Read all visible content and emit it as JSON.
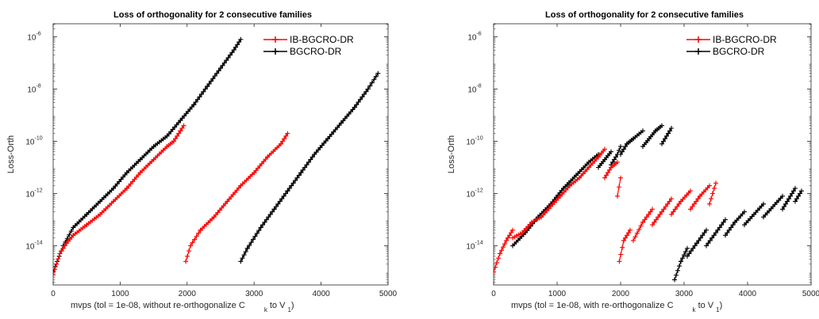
{
  "chart_data": [
    {
      "type": "scatter",
      "title": "Loss of orthogonality for 2 consecutive families",
      "xlabel": "mvps (tol = 1e-08, without re-orthogonalize C",
      "xlabel_sub_k": "k",
      "xlabel_to": " to V",
      "xlabel_sub_1": "1",
      "xlabel_close": ")",
      "ylabel": "Loss-Orth",
      "xlim": [
        0,
        5000
      ],
      "ylim_log10": [
        -15.5,
        -5.5
      ],
      "y_scale": "log",
      "x_ticks": [
        "0",
        "1000",
        "2000",
        "3000",
        "4000",
        "5000"
      ],
      "y_ticks": [
        {
          "base": "10",
          "exp": "-14"
        },
        {
          "base": "10",
          "exp": "-12"
        },
        {
          "base": "10",
          "exp": "-10"
        },
        {
          "base": "10",
          "exp": "-8"
        },
        {
          "base": "10",
          "exp": "-6"
        }
      ],
      "legend_placement": "top-right",
      "series": [
        {
          "name": "IB-BGCRO-DR",
          "color": "#ff0000",
          "segments": [
            {
              "x": [
                0,
                100,
                200,
                300,
                500,
                700,
                900,
                1100,
                1300,
                1500,
                1700,
                1800,
                1900,
                1950
              ],
              "y_log10": [
                -15.1,
                -14.3,
                -13.9,
                -13.6,
                -13.2,
                -12.8,
                -12.3,
                -11.8,
                -11.2,
                -10.7,
                -10.2,
                -10.0,
                -9.6,
                -9.4
              ]
            },
            {
              "x": [
                1980,
                2050,
                2200,
                2400,
                2600,
                2800,
                3000,
                3200,
                3400,
                3500
              ],
              "y_log10": [
                -14.6,
                -14.0,
                -13.4,
                -12.9,
                -12.3,
                -11.7,
                -11.2,
                -10.6,
                -10.1,
                -9.7
              ]
            }
          ]
        },
        {
          "name": "BGCRO-DR",
          "color": "#000000",
          "segments": [
            {
              "x": [
                0,
                150,
                300,
                500,
                700,
                900,
                1100,
                1300,
                1500,
                1700,
                1900,
                2100,
                2300,
                2500,
                2700,
                2800
              ],
              "y_log10": [
                -15.0,
                -14.0,
                -13.3,
                -12.8,
                -12.3,
                -11.8,
                -11.2,
                -10.7,
                -10.2,
                -9.8,
                -9.2,
                -8.6,
                -7.9,
                -7.2,
                -6.5,
                -6.1
              ]
            },
            {
              "x": [
                2800,
                2900,
                3100,
                3300,
                3500,
                3700,
                3900,
                4100,
                4300,
                4500,
                4700,
                4850
              ],
              "y_log10": [
                -14.6,
                -14.1,
                -13.3,
                -12.6,
                -11.9,
                -11.2,
                -10.5,
                -9.9,
                -9.3,
                -8.7,
                -8.0,
                -7.4
              ]
            }
          ]
        }
      ]
    },
    {
      "type": "scatter",
      "title": "Loss of orthogonality for 2 consecutive families",
      "xlabel": "mvps (tol = 1e-08, with re-orthogonalize C",
      "xlabel_sub_k": "k",
      "xlabel_to": " to V",
      "xlabel_sub_1": "1",
      "xlabel_close": ")",
      "ylabel": "Loss-Orth",
      "xlim": [
        0,
        5000
      ],
      "ylim_log10": [
        -15.5,
        -5.5
      ],
      "y_scale": "log",
      "x_ticks": [
        "0",
        "1000",
        "2000",
        "3000",
        "4000",
        "5000"
      ],
      "y_ticks": [
        {
          "base": "10",
          "exp": "-14"
        },
        {
          "base": "10",
          "exp": "-12"
        },
        {
          "base": "10",
          "exp": "-10"
        },
        {
          "base": "10",
          "exp": "-8"
        },
        {
          "base": "10",
          "exp": "-6"
        }
      ],
      "legend_placement": "top-right",
      "series": [
        {
          "name": "IB-BGCRO-DR",
          "color": "#ff0000",
          "segments": [
            {
              "x": [
                0,
                100,
                200,
                300
              ],
              "y_log10": [
                -15.0,
                -14.3,
                -13.8,
                -13.4
              ]
            },
            {
              "x": [
                300,
                450,
                600,
                750,
                900,
                1050,
                1200,
                1350,
                1500,
                1650,
                1750
              ],
              "y_log10": [
                -13.7,
                -13.5,
                -13.1,
                -12.9,
                -12.5,
                -12.1,
                -11.7,
                -11.4,
                -11.0,
                -10.6,
                -10.3
              ]
            },
            {
              "x": [
                1750,
                1850,
                1950
              ],
              "y_log10": [
                -11.4,
                -11.0,
                -10.8
              ]
            },
            {
              "x": [
                1950,
                2000
              ],
              "y_log10": [
                -12.1,
                -11.4
              ]
            },
            {
              "x": [
                1980,
                2050,
                2150
              ],
              "y_log10": [
                -14.6,
                -13.8,
                -13.4
              ]
            },
            {
              "x": [
                2200,
                2350,
                2500
              ],
              "y_log10": [
                -13.8,
                -13.1,
                -12.6
              ]
            },
            {
              "x": [
                2500,
                2650,
                2800
              ],
              "y_log10": [
                -13.2,
                -12.7,
                -12.2
              ]
            },
            {
              "x": [
                2800,
                2950,
                3100
              ],
              "y_log10": [
                -12.8,
                -12.3,
                -11.9
              ]
            },
            {
              "x": [
                3100,
                3250,
                3400
              ],
              "y_log10": [
                -12.6,
                -12.1,
                -11.7
              ]
            },
            {
              "x": [
                3400,
                3450,
                3500
              ],
              "y_log10": [
                -12.4,
                -12.0,
                -11.6
              ]
            }
          ]
        },
        {
          "name": "BGCRO-DR",
          "color": "#000000",
          "segments": [
            {
              "x": [
                300,
                500,
                700,
                900,
                1100,
                1300,
                1500,
                1650
              ],
              "y_log10": [
                -14.0,
                -13.5,
                -12.9,
                -12.4,
                -11.8,
                -11.3,
                -10.8,
                -10.5
              ]
            },
            {
              "x": [
                1650,
                1750,
                1850
              ],
              "y_log10": [
                -11.0,
                -10.7,
                -10.4
              ]
            },
            {
              "x": [
                1850,
                1950,
                2000
              ],
              "y_log10": [
                -10.9,
                -10.5,
                -10.2
              ]
            },
            {
              "x": [
                2000,
                2100,
                2200,
                2350
              ],
              "y_log10": [
                -10.5,
                -10.1,
                -9.9,
                -9.6
              ]
            },
            {
              "x": [
                2350,
                2450,
                2550,
                2650
              ],
              "y_log10": [
                -10.2,
                -9.9,
                -9.6,
                -9.4
              ]
            },
            {
              "x": [
                2650,
                2750,
                2800
              ],
              "y_log10": [
                -10.1,
                -9.7,
                -9.5
              ]
            },
            {
              "x": [
                2850,
                2950,
                3050
              ],
              "y_log10": [
                -15.3,
                -14.6,
                -14.1
              ]
            },
            {
              "x": [
                3050,
                3200,
                3350
              ],
              "y_log10": [
                -14.4,
                -13.9,
                -13.4
              ]
            },
            {
              "x": [
                3350,
                3500,
                3650
              ],
              "y_log10": [
                -14.0,
                -13.5,
                -13.0
              ]
            },
            {
              "x": [
                3650,
                3800,
                3950
              ],
              "y_log10": [
                -13.6,
                -13.1,
                -12.7
              ]
            },
            {
              "x": [
                3950,
                4100,
                4250
              ],
              "y_log10": [
                -13.2,
                -12.8,
                -12.4
              ]
            },
            {
              "x": [
                4250,
                4400,
                4550
              ],
              "y_log10": [
                -12.9,
                -12.5,
                -12.1
              ]
            },
            {
              "x": [
                4550,
                4650,
                4750
              ],
              "y_log10": [
                -12.6,
                -12.2,
                -11.8
              ]
            },
            {
              "x": [
                4750,
                4850
              ],
              "y_log10": [
                -12.3,
                -11.9
              ]
            }
          ]
        }
      ]
    }
  ]
}
